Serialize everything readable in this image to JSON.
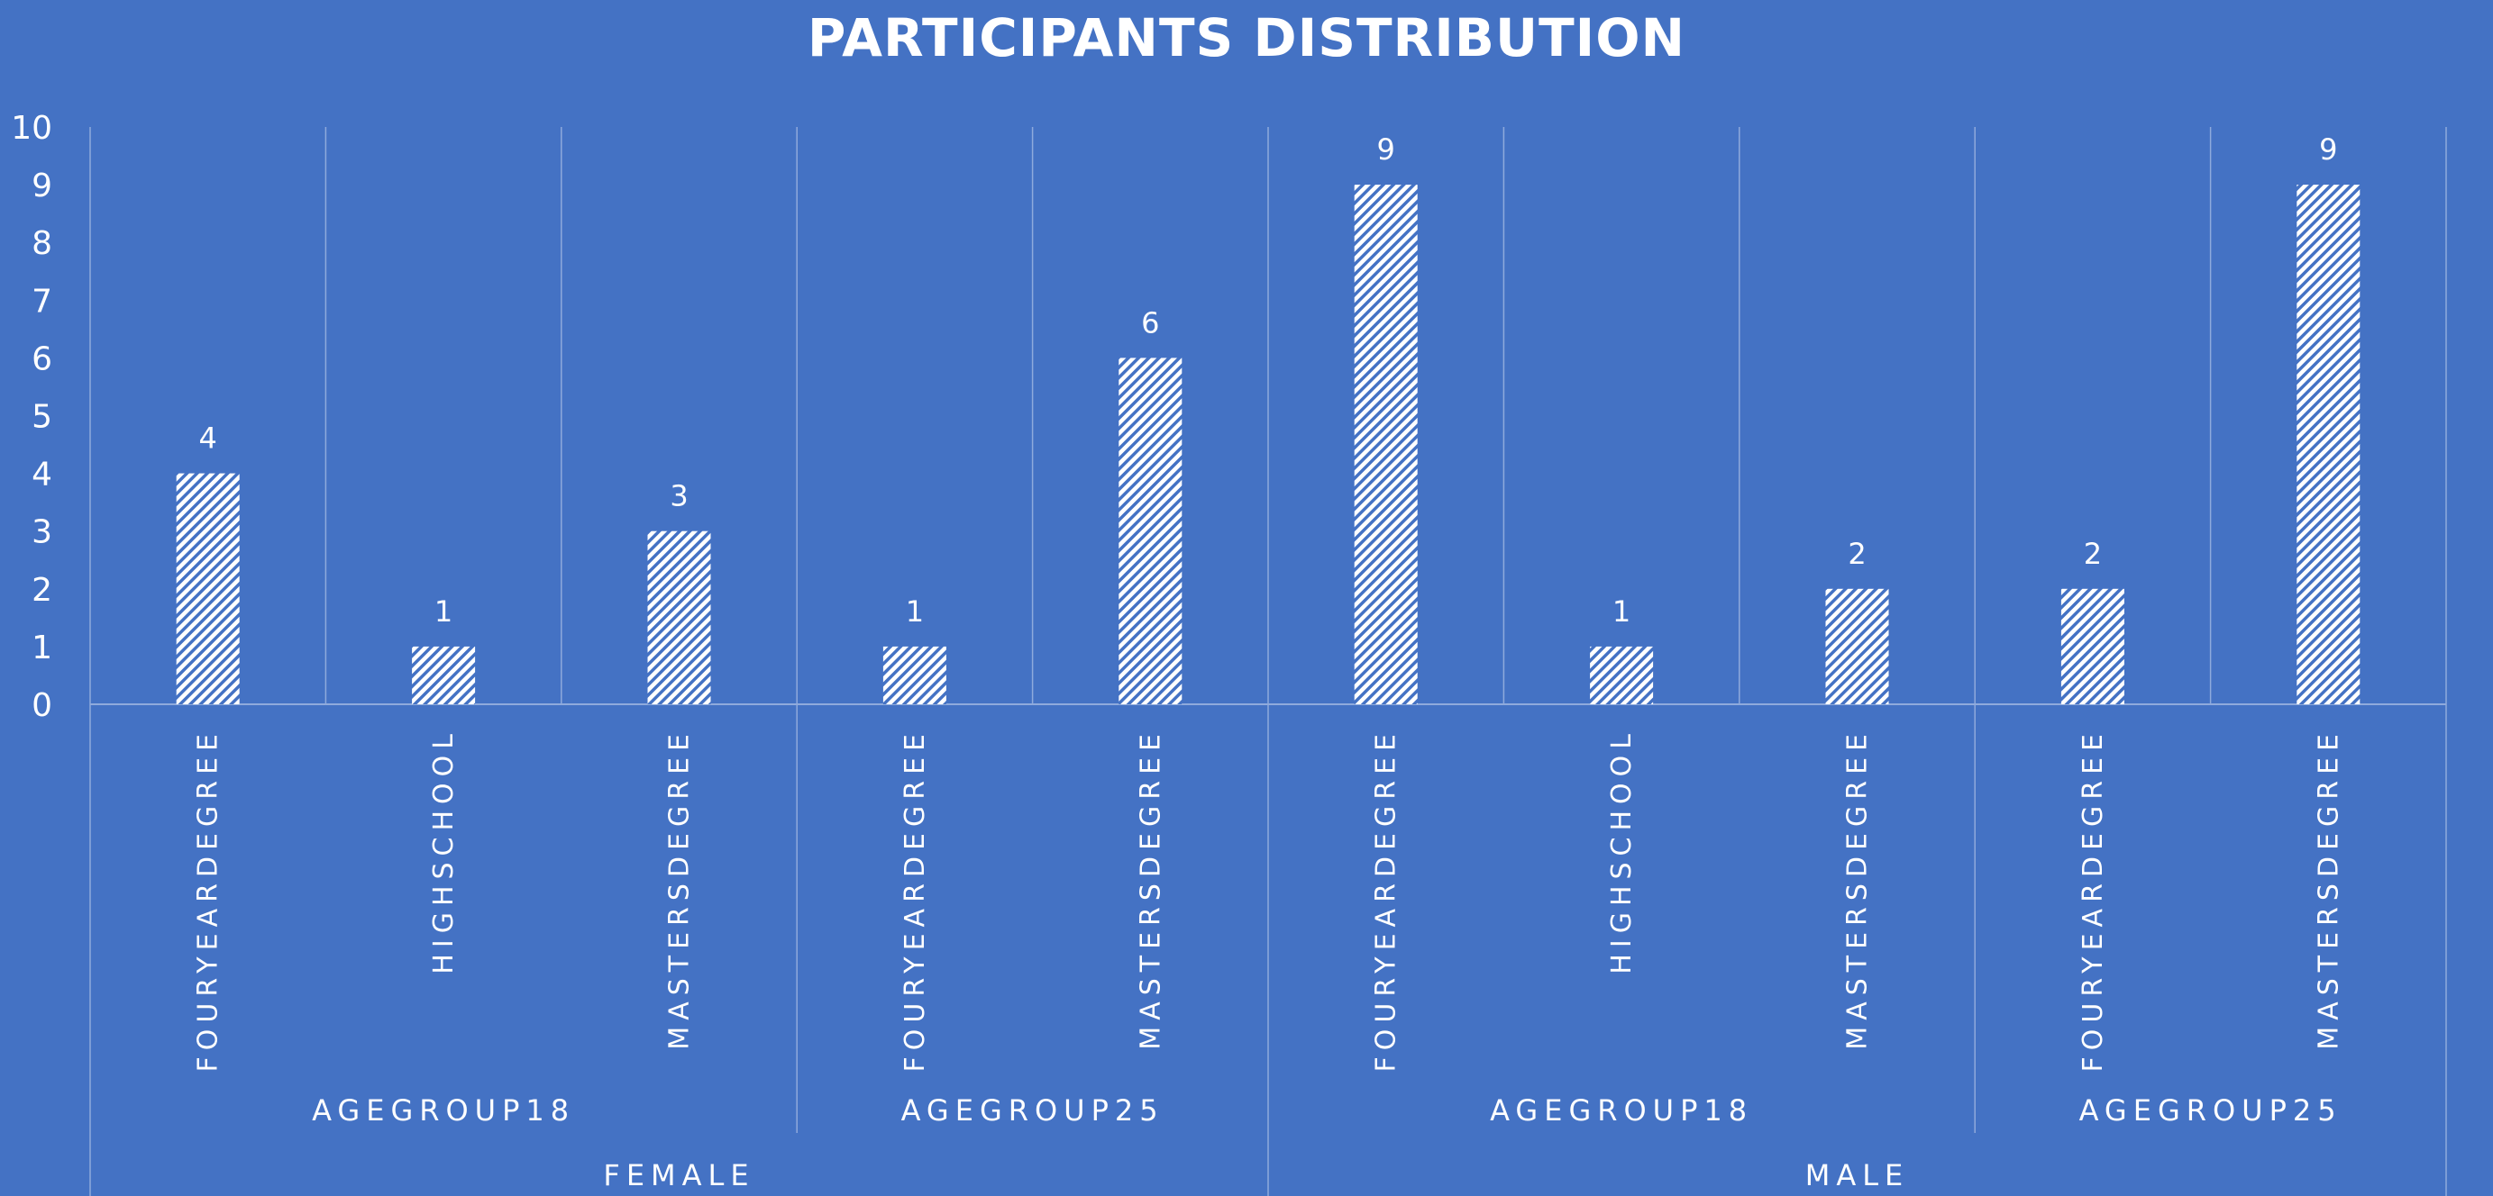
{
  "chart_data": {
    "type": "bar",
    "title": "PARTICIPANTS DISTRIBUTION",
    "xlabel": "",
    "ylabel": "",
    "ylim": [
      0,
      10
    ],
    "yticks": [
      "0",
      "1",
      "2",
      "3",
      "4",
      "5",
      "6",
      "7",
      "8",
      "9",
      "10"
    ],
    "categories": [
      "FOURYEARDEGREE",
      "HIGHSCHOOL",
      "MASTERSDEGREE",
      "FOURYEARDEGREE",
      "MASTERSDEGREE",
      "FOURYEARDEGREE",
      "HIGHSCHOOL",
      "MASTERSDEGREE",
      "FOURYEARDEGREE",
      "MASTERSDEGREE"
    ],
    "values": [
      4,
      1,
      3,
      1,
      6,
      9,
      1,
      2,
      2,
      9
    ],
    "age_groups": [
      {
        "label": "AGEGROUP18",
        "count": 3
      },
      {
        "label": "AGEGROUP25",
        "count": 2
      },
      {
        "label": "AGEGROUP18",
        "count": 3
      },
      {
        "label": "AGEGROUP25",
        "count": 2
      }
    ],
    "genders": [
      {
        "label": "FEMALE",
        "count": 5
      },
      {
        "label": "MALE",
        "count": 5
      }
    ],
    "grid": true,
    "legend": "none",
    "data_labels": true
  },
  "colors": {
    "background": "#4472C4",
    "bar_pattern": "white diagonal hatch",
    "text": "#FFFFFF",
    "grid_line": "#8FAADC"
  }
}
